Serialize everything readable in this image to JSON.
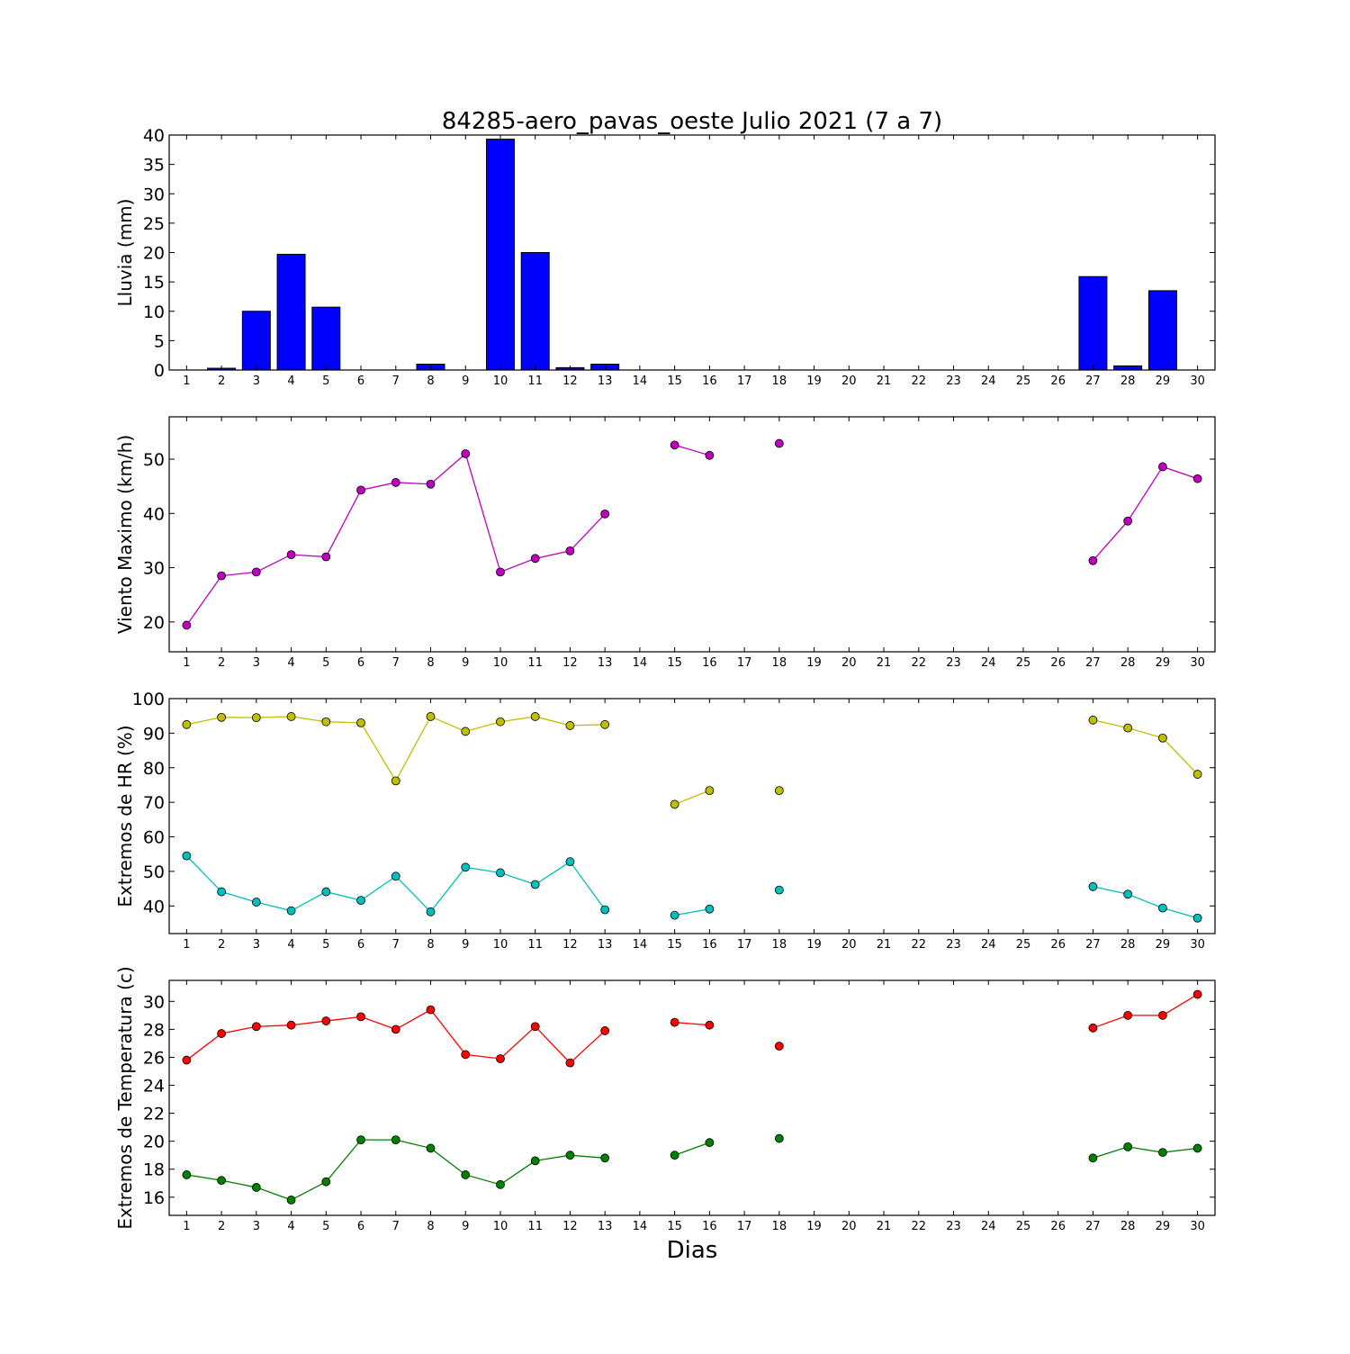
{
  "title": "84285-aero_pavas_oeste Julio 2021  (7 a 7)",
  "xlabel": "Dias",
  "x_ticks": [
    1,
    2,
    3,
    4,
    5,
    6,
    7,
    8,
    9,
    10,
    11,
    12,
    13,
    14,
    15,
    16,
    17,
    18,
    19,
    20,
    21,
    22,
    23,
    24,
    25,
    26,
    27,
    28,
    29,
    30
  ],
  "chart_data": [
    {
      "id": "rain",
      "type": "bar",
      "ylabel": "Lluvia (mm)",
      "ylim": [
        0,
        40
      ],
      "yticks": [
        0,
        5,
        10,
        15,
        20,
        25,
        30,
        35,
        40
      ],
      "series": [
        {
          "color": "#0000ff",
          "values": [
            0,
            0.3,
            10,
            19.7,
            10.7,
            0,
            0,
            1.0,
            0,
            39.3,
            20.0,
            0.4,
            1.0,
            0,
            0,
            0,
            0,
            0,
            0,
            0,
            0,
            0,
            0,
            0,
            0,
            0,
            15.9,
            0.7,
            13.5,
            0
          ]
        }
      ]
    },
    {
      "id": "wind",
      "type": "line",
      "ylabel": "Viento Maximo (km/h)",
      "ylim": [
        14.5,
        57.8
      ],
      "yticks": [
        20,
        30,
        40,
        50
      ],
      "series": [
        {
          "color": "#bf00bf",
          "values": [
            19.4,
            28.5,
            29.2,
            32.4,
            32.0,
            44.3,
            45.7,
            45.4,
            51.0,
            29.2,
            31.7,
            33.1,
            39.9,
            null,
            52.6,
            50.7,
            null,
            52.9,
            null,
            null,
            null,
            null,
            null,
            null,
            null,
            null,
            31.3,
            38.6,
            48.6,
            46.4
          ]
        }
      ]
    },
    {
      "id": "hr",
      "type": "line",
      "ylabel": "Extremos de HR (%)",
      "ylim": [
        32,
        100
      ],
      "yticks": [
        40,
        50,
        60,
        70,
        80,
        90,
        100
      ],
      "series": [
        {
          "color": "#bfbf00",
          "values": [
            92.5,
            94.6,
            94.5,
            94.8,
            93.3,
            93.0,
            76.2,
            94.8,
            90.5,
            93.3,
            94.8,
            92.2,
            92.5,
            null,
            69.4,
            73.4,
            null,
            73.4,
            null,
            null,
            null,
            null,
            null,
            null,
            null,
            null,
            93.8,
            91.5,
            88.6,
            78.1
          ]
        },
        {
          "color": "#00bfbf",
          "values": [
            54.5,
            44.1,
            41.1,
            38.6,
            44.1,
            41.6,
            48.6,
            38.3,
            51.2,
            49.6,
            46.2,
            52.8,
            38.9,
            null,
            37.3,
            39.1,
            null,
            44.6,
            null,
            null,
            null,
            null,
            null,
            null,
            null,
            null,
            45.6,
            43.4,
            39.4,
            36.5
          ]
        }
      ]
    },
    {
      "id": "temp",
      "type": "line",
      "ylabel": "Extremos de Temperatura (c)",
      "ylim": [
        14.7,
        31.5
      ],
      "yticks": [
        16,
        18,
        20,
        22,
        24,
        26,
        28,
        30
      ],
      "series": [
        {
          "color": "#ff0000",
          "values": [
            25.8,
            27.7,
            28.2,
            28.3,
            28.6,
            28.9,
            28.0,
            29.4,
            26.2,
            25.9,
            28.2,
            25.6,
            27.9,
            null,
            28.5,
            28.3,
            null,
            26.8,
            null,
            null,
            null,
            null,
            null,
            null,
            null,
            null,
            28.1,
            29.0,
            29.0,
            30.5
          ]
        },
        {
          "color": "#008000",
          "values": [
            17.6,
            17.2,
            16.7,
            15.8,
            17.1,
            20.1,
            20.1,
            19.5,
            17.6,
            16.9,
            18.6,
            19.0,
            18.8,
            null,
            19.0,
            19.9,
            null,
            20.2,
            null,
            null,
            null,
            null,
            null,
            null,
            null,
            null,
            18.8,
            19.6,
            19.2,
            19.5
          ]
        }
      ]
    }
  ]
}
